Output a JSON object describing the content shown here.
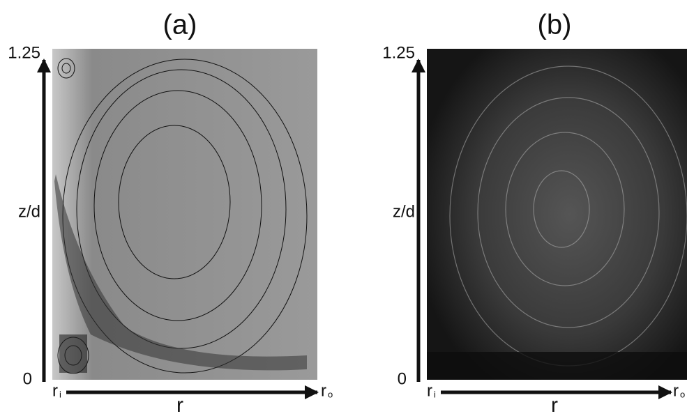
{
  "panels": [
    {
      "label": "(a)",
      "y_top": "1.25",
      "y_bottom": "0",
      "y_axis": "z/d",
      "x_axis": "r",
      "x_start": "r",
      "x_start_sub": "i",
      "x_end": "r",
      "x_end_sub": "o"
    },
    {
      "label": "(b)",
      "y_top": "1.25",
      "y_bottom": "0",
      "y_axis": "z/d",
      "x_axis": "r",
      "x_start": "r",
      "x_start_sub": "i",
      "x_end": "r",
      "x_end_sub": "o"
    }
  ]
}
